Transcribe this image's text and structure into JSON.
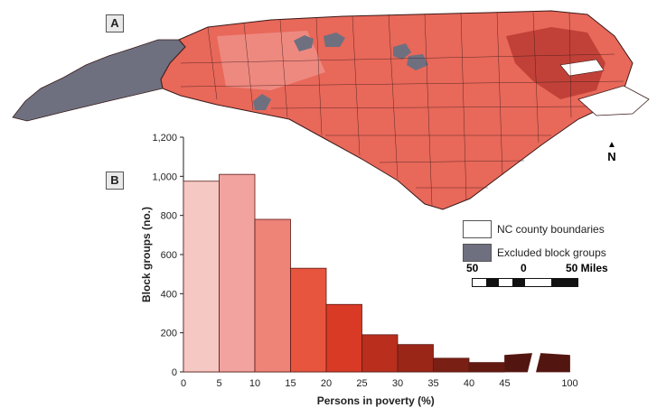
{
  "panels": {
    "a": "A",
    "b": "B"
  },
  "north_label": "N",
  "legend": [
    {
      "label": "NC county boundaries",
      "swatch": "#ffffff"
    },
    {
      "label": "Excluded block groups",
      "swatch": "#6e7080"
    }
  ],
  "scalebar": {
    "left": "50",
    "mid": "0",
    "right": "50 Miles"
  },
  "colors": {
    "map_base": "#e8685a",
    "excluded": "#6e7080",
    "county_lines": "#3a1a18"
  },
  "chart_data": {
    "type": "bar",
    "xlabel": "Persons in poverty  (%)",
    "ylabel": "Block groups (no.)",
    "ylim": [
      0,
      1200
    ],
    "yticks": [
      "0",
      "200",
      "400",
      "600",
      "800",
      "1,000",
      "1,200"
    ],
    "xticks": [
      "0",
      "5",
      "10",
      "15",
      "20",
      "25",
      "30",
      "35",
      "40",
      "45",
      "100"
    ],
    "bins": [
      {
        "range": [
          0,
          5
        ],
        "value": 975,
        "color": "#f6c8c4"
      },
      {
        "range": [
          5,
          10
        ],
        "value": 1010,
        "color": "#f2a3a0"
      },
      {
        "range": [
          10,
          15
        ],
        "value": 780,
        "color": "#ee8378"
      },
      {
        "range": [
          15,
          20
        ],
        "value": 530,
        "color": "#e8553f"
      },
      {
        "range": [
          20,
          25
        ],
        "value": 345,
        "color": "#d93a25"
      },
      {
        "range": [
          25,
          30
        ],
        "value": 190,
        "color": "#b92e1d"
      },
      {
        "range": [
          30,
          35
        ],
        "value": 140,
        "color": "#9a2618"
      },
      {
        "range": [
          35,
          40
        ],
        "value": 70,
        "color": "#7a1f14"
      },
      {
        "range": [
          40,
          45
        ],
        "value": 48,
        "color": "#621910"
      },
      {
        "range": [
          45,
          100
        ],
        "value": 85,
        "color": "#521510"
      }
    ]
  }
}
